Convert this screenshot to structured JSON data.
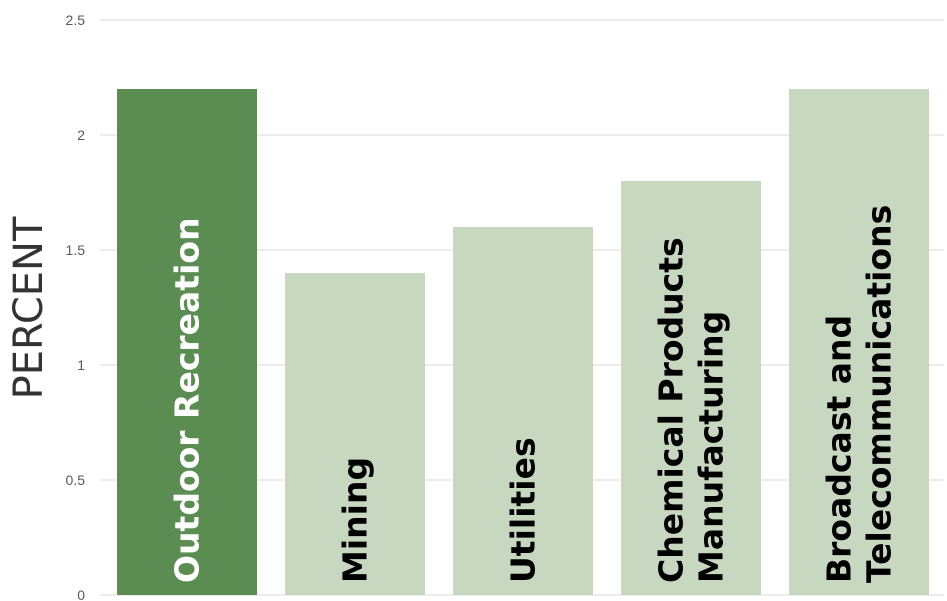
{
  "chart_data": {
    "type": "bar",
    "title": "",
    "xlabel": "",
    "ylabel": "PERCENT",
    "ylim": [
      0,
      2.5
    ],
    "yticks": [
      "0",
      "0.5",
      "1",
      "1.5",
      "2",
      "2.5"
    ],
    "grid": true,
    "categories": [
      [
        "Outdoor Recreation"
      ],
      [
        "Mining"
      ],
      [
        "Utilities"
      ],
      [
        "Chemical Products",
        "Manufacturing"
      ],
      [
        "Broadcast and",
        "Telecommunications"
      ]
    ],
    "values": [
      2.2,
      1.4,
      1.6,
      1.8,
      2.2
    ],
    "colors": [
      "#5b8c51",
      "#c8d7bf",
      "#c8d7bf",
      "#c8d7bf",
      "#c8d7bf"
    ],
    "label_colors": [
      "#ffffff",
      "#000000",
      "#000000",
      "#000000",
      "#000000"
    ],
    "gridline_color": "#d9d9d9"
  }
}
